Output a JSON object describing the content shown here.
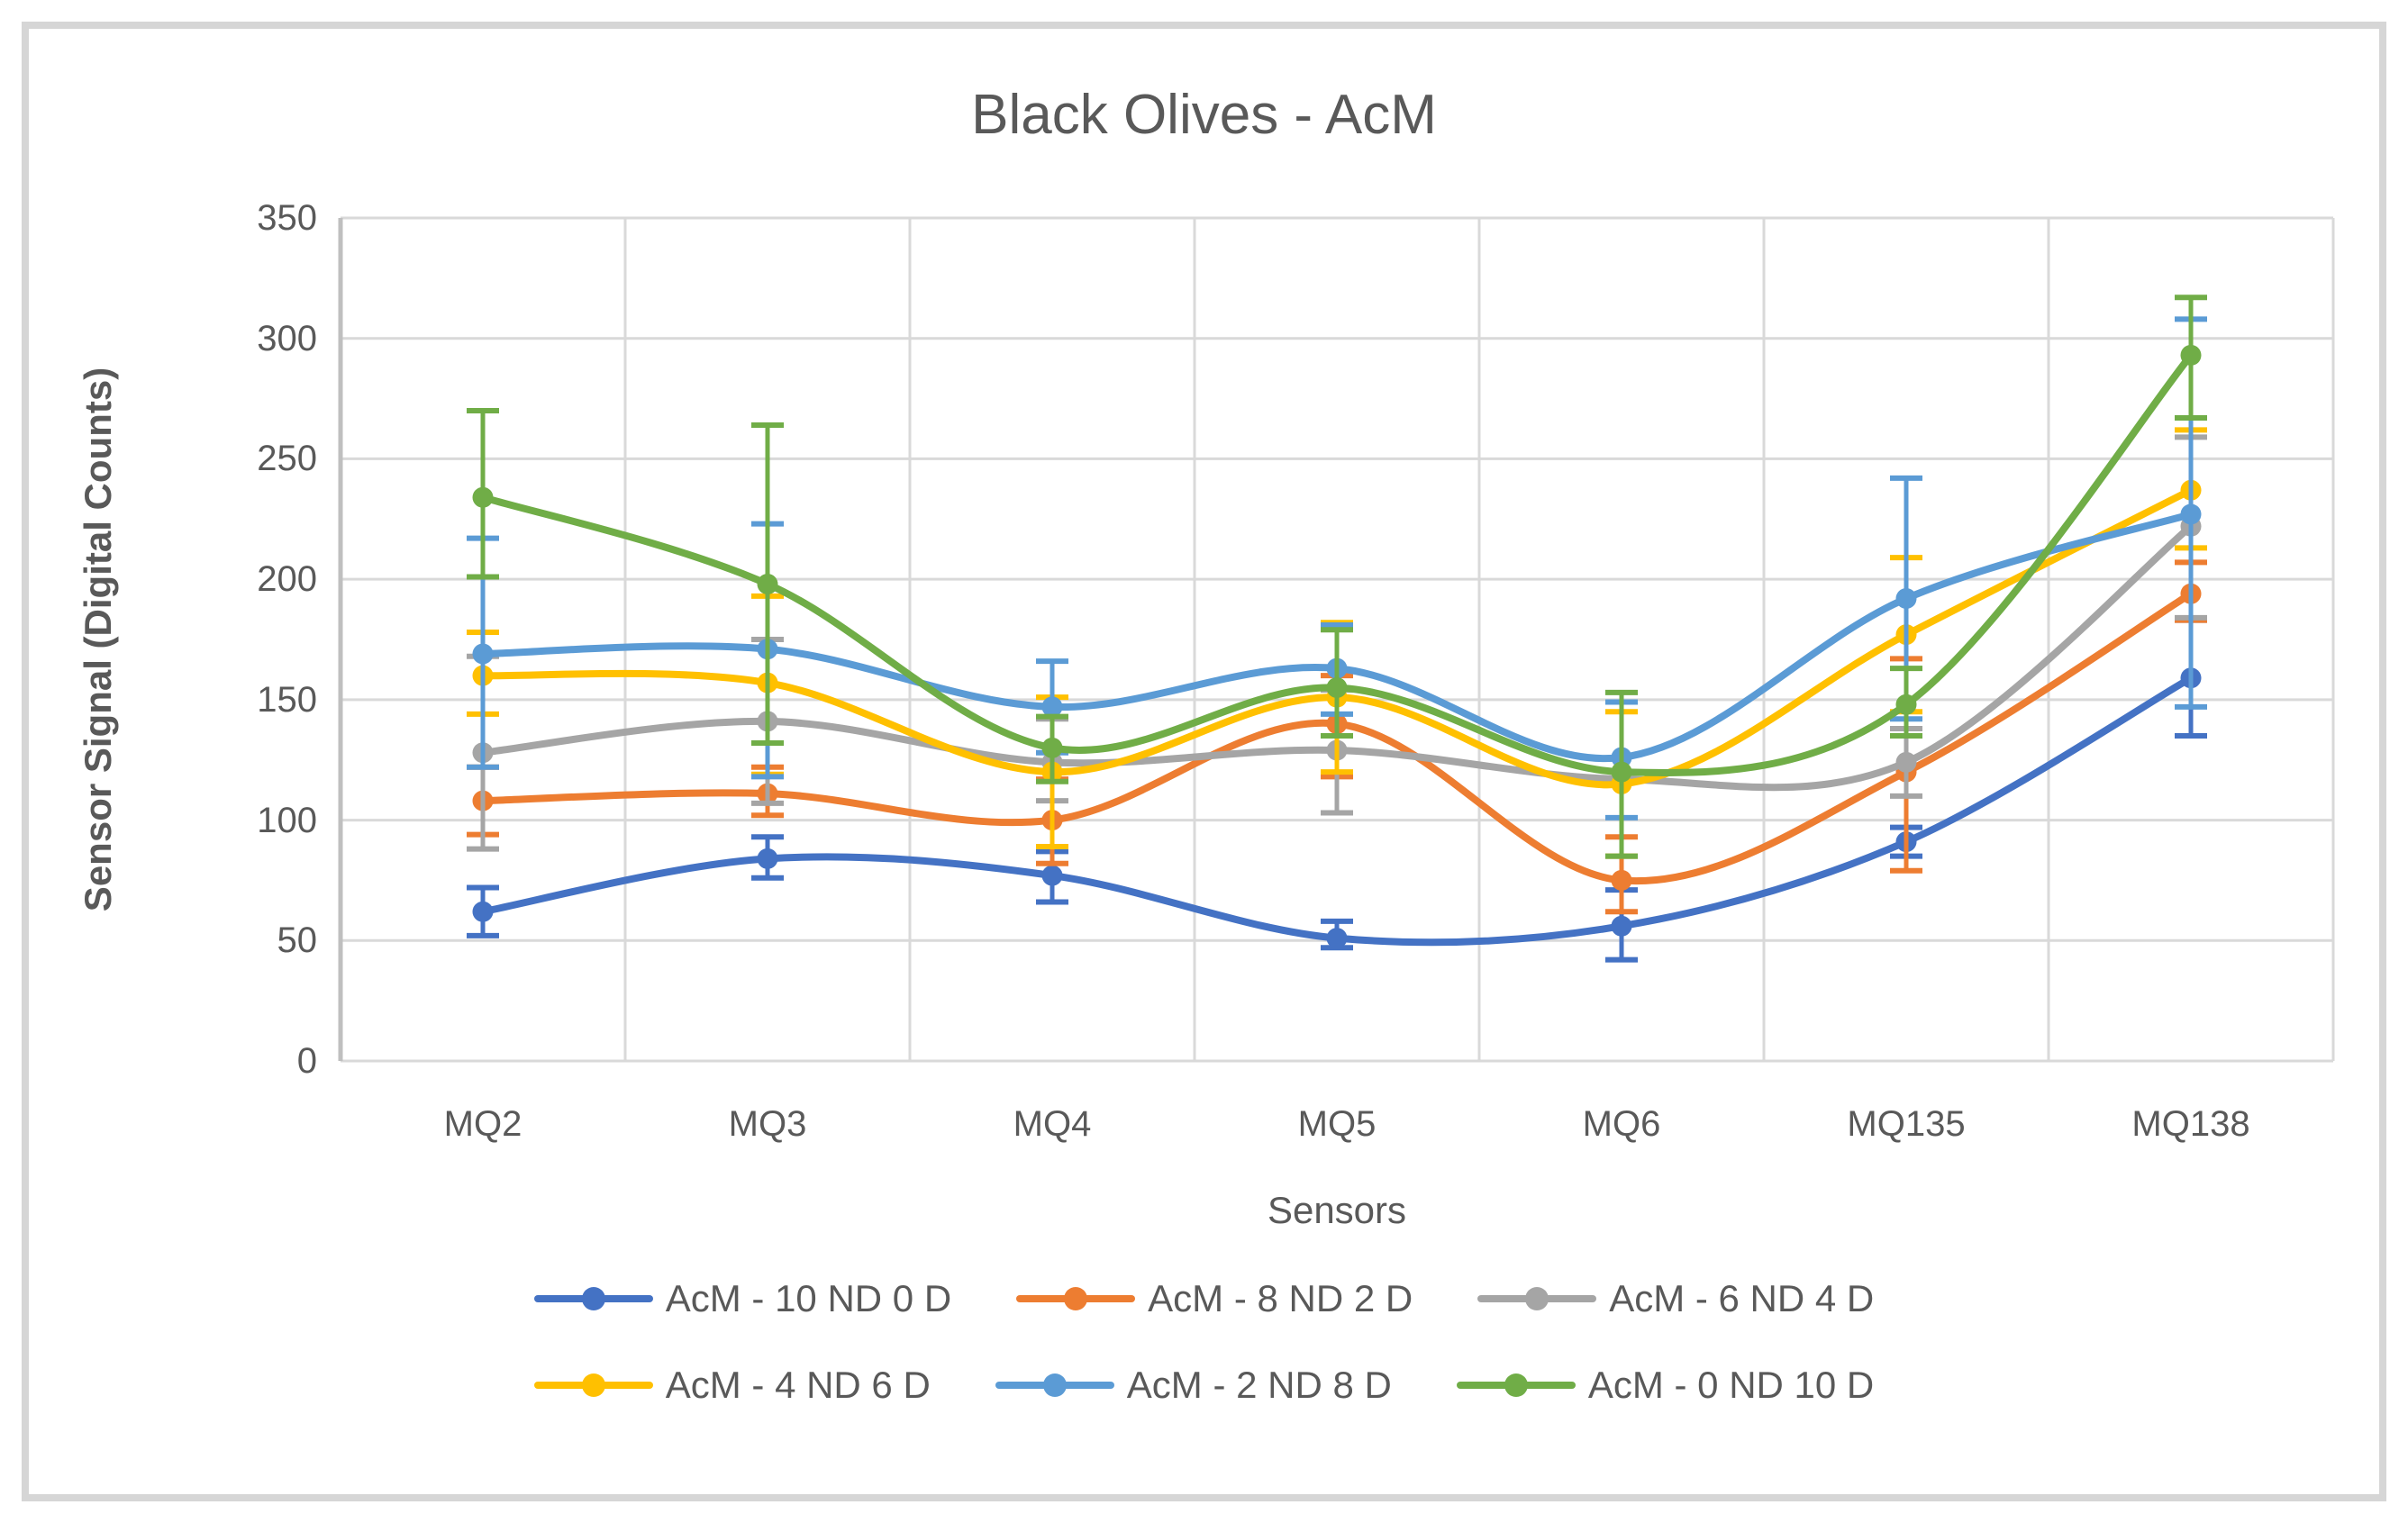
{
  "style": {
    "background": "#FFFFFF",
    "frame_border_color": "#D6D6D6",
    "text_color": "#595959",
    "gridline_color": "#D9D9D9",
    "axis_line_color": "#BFBFBF"
  },
  "chart_data": {
    "type": "line",
    "title": "Black Olives - AcM",
    "xlabel": "Sensors",
    "ylabel": "Sensor Signal (Digital Counts)",
    "ylim": [
      0,
      350
    ],
    "ytick_interval": 50,
    "yticks": [
      "350",
      "300",
      "250",
      "200",
      "150",
      "100",
      "50",
      "0"
    ],
    "categories": [
      "MQ2",
      "MQ3",
      "MQ4",
      "MQ5",
      "MQ6",
      "MQ135",
      "MQ138"
    ],
    "grid": "horizontal gridlines + vertical category-boundary gridlines",
    "legend_position": "bottom (two rows)",
    "smoothed_lines": true,
    "error_bars": true,
    "series": [
      {
        "name": "AcM - 10 ND 0 D",
        "color": "#4472C4",
        "values": [
          62,
          84,
          77,
          51,
          56,
          91,
          159
        ],
        "err_up": [
          10,
          9,
          10,
          7,
          15,
          6,
          24
        ],
        "err_down": [
          10,
          8,
          11,
          4,
          14,
          6,
          24
        ]
      },
      {
        "name": "AcM - 8 ND 2 D",
        "color": "#ED7D31",
        "values": [
          108,
          111,
          100,
          140,
          75,
          120,
          194
        ],
        "err_up": [
          14,
          11,
          17,
          20,
          18,
          47,
          13
        ],
        "err_down": [
          14,
          9,
          18,
          22,
          13,
          41,
          11
        ]
      },
      {
        "name": "AcM - 6 ND 4 D",
        "color": "#A5A5A5",
        "values": [
          128,
          141,
          124,
          129,
          117,
          124,
          222
        ],
        "err_up": [
          40,
          34,
          18,
          25,
          32,
          14,
          37
        ],
        "err_down": [
          40,
          34,
          16,
          26,
          32,
          14,
          38
        ]
      },
      {
        "name": "AcM - 4 ND 6 D",
        "color": "#FFC000",
        "values": [
          160,
          157,
          120,
          151,
          115,
          177,
          237
        ],
        "err_up": [
          18,
          36,
          31,
          31,
          30,
          32,
          25
        ],
        "err_down": [
          16,
          38,
          31,
          31,
          30,
          32,
          24
        ]
      },
      {
        "name": "AcM - 2 ND 8 D",
        "color": "#5B9BD5",
        "values": [
          169,
          171,
          147,
          163,
          126,
          192,
          227
        ],
        "err_up": [
          48,
          52,
          19,
          18,
          23,
          50,
          81
        ],
        "err_down": [
          47,
          53,
          19,
          19,
          25,
          50,
          80
        ]
      },
      {
        "name": "AcM - 0 ND 10 D",
        "color": "#70AD47",
        "values": [
          234,
          198,
          130,
          155,
          120,
          148,
          293
        ],
        "err_up": [
          36,
          66,
          13,
          24,
          33,
          15,
          24
        ],
        "err_down": [
          33,
          66,
          14,
          20,
          35,
          13,
          26
        ]
      }
    ]
  }
}
